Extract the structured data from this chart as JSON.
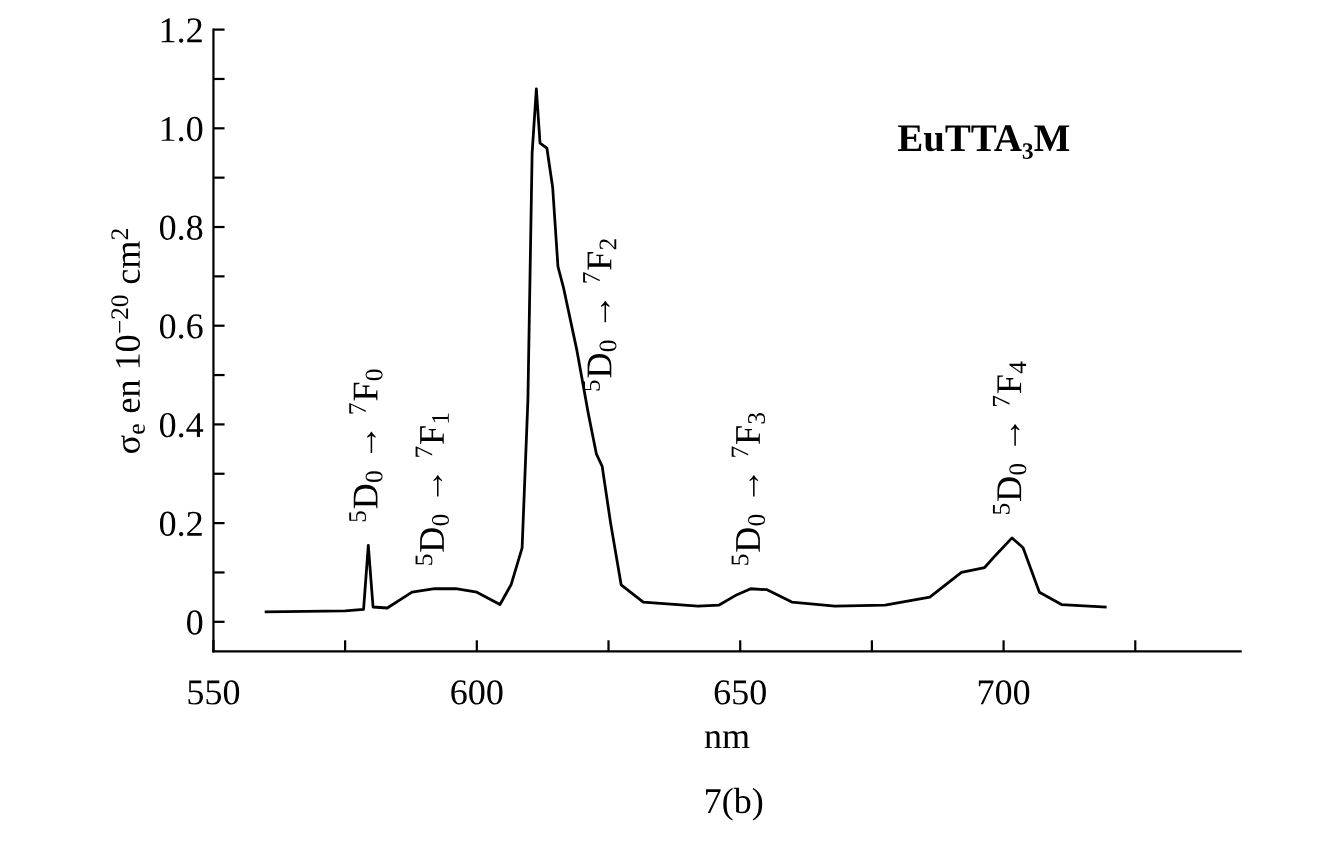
{
  "chart_data": {
    "type": "line",
    "xlabel": "nm",
    "ylabel": "σ$_{e}$ en 10$^{−20}$ cm$^{2}$",
    "x": [
      560,
      575,
      578.5,
      579.4,
      580.3,
      583,
      587.7,
      592,
      596,
      600,
      604.4,
      606.5,
      608.6,
      609.7,
      610.5,
      611.3,
      612,
      613.3,
      614.4,
      615.4,
      616.5,
      619,
      621.2,
      622.7,
      623.8,
      625.4,
      627.4,
      631.6,
      642,
      646,
      649.4,
      652,
      655.1,
      659.8,
      668,
      677.5,
      686,
      692,
      696.4,
      698.5,
      701.6,
      703.7,
      706.8,
      711,
      719.3
    ],
    "series": [
      {
        "color": "#000000",
        "values": [
          0.02,
          0.022,
          0.025,
          0.155,
          0.03,
          0.028,
          0.06,
          0.067,
          0.067,
          0.06,
          0.035,
          0.075,
          0.15,
          0.45,
          0.95,
          1.08,
          0.97,
          0.96,
          0.88,
          0.72,
          0.675,
          0.55,
          0.42,
          0.34,
          0.315,
          0.2,
          0.075,
          0.04,
          0.032,
          0.034,
          0.055,
          0.067,
          0.065,
          0.04,
          0.032,
          0.034,
          0.05,
          0.1,
          0.11,
          0.135,
          0.17,
          0.15,
          0.06,
          0.035,
          0.03
        ]
      }
    ],
    "xlim": [
      550,
      745
    ],
    "ylim": [
      -0.06,
      1.2
    ],
    "xticks": [
      550,
      {
        "value": 575,
        "label": null
      },
      600,
      {
        "value": 625,
        "label": null
      },
      650,
      {
        "value": 675,
        "label": null
      },
      700,
      {
        "value": 725,
        "label": null
      }
    ],
    "yticks": [
      0,
      {
        "value": 0.1,
        "label": null
      },
      0.2,
      {
        "value": 0.3,
        "label": null
      },
      0.4,
      {
        "value": 0.5,
        "label": null
      },
      0.6,
      {
        "value": 0.7,
        "label": null
      },
      0.8,
      {
        "value": 0.9,
        "label": null
      },
      {
        "value": 1,
        "label": "1.0"
      },
      {
        "value": 1.1,
        "label": null
      },
      1.2
    ],
    "grid": false,
    "legend": false,
    "marker": "none",
    "line_style": "solid",
    "annotations": [
      {
        "text": "$^{5}$D$_{0}$ → $^{7}$F$_{0}$",
        "x": 579.4,
        "y": 0.155
      },
      {
        "text": "$^{5}$D$_{0}$ → $^{7}$F$_{1}$",
        "x": 592,
        "y": 0.067
      },
      {
        "text": "$^{5}$D$_{0}$ → $^{7}$F$_{2}$",
        "x": 623.8,
        "y": 0.315
      },
      {
        "text": "$^{5}$D$_{0}$ → $^{7}$F$_{3}$",
        "x": 652,
        "y": 0.067
      },
      {
        "text": "$^{5}$D$_{0}$ → $^{7}$F$_{4}$",
        "x": 701.6,
        "y": 0.17
      },
      "EuTTA₃M",
      "7(b)"
    ]
  }
}
